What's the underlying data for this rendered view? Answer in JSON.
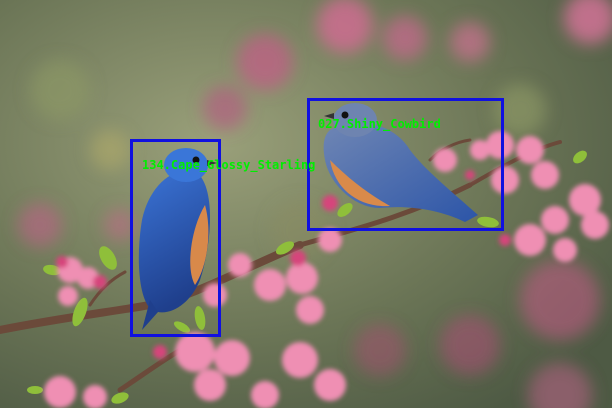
{
  "scene": {
    "subject": "two bluebirds perched on a flowering crabapple branch with pink blossoms",
    "colors": {
      "box": "#1010e0",
      "label": "#00ee00",
      "background": "#6f7a5a",
      "blossom": "#ef8fb3",
      "bird_blue": "#2f63c4",
      "bird_orange": "#d98a4a"
    }
  },
  "detections": [
    {
      "id": "det-left",
      "label": "134.Cape_Glossy_Starling"
    },
    {
      "id": "det-right",
      "label": "027.Shiny_Cowbird"
    }
  ]
}
